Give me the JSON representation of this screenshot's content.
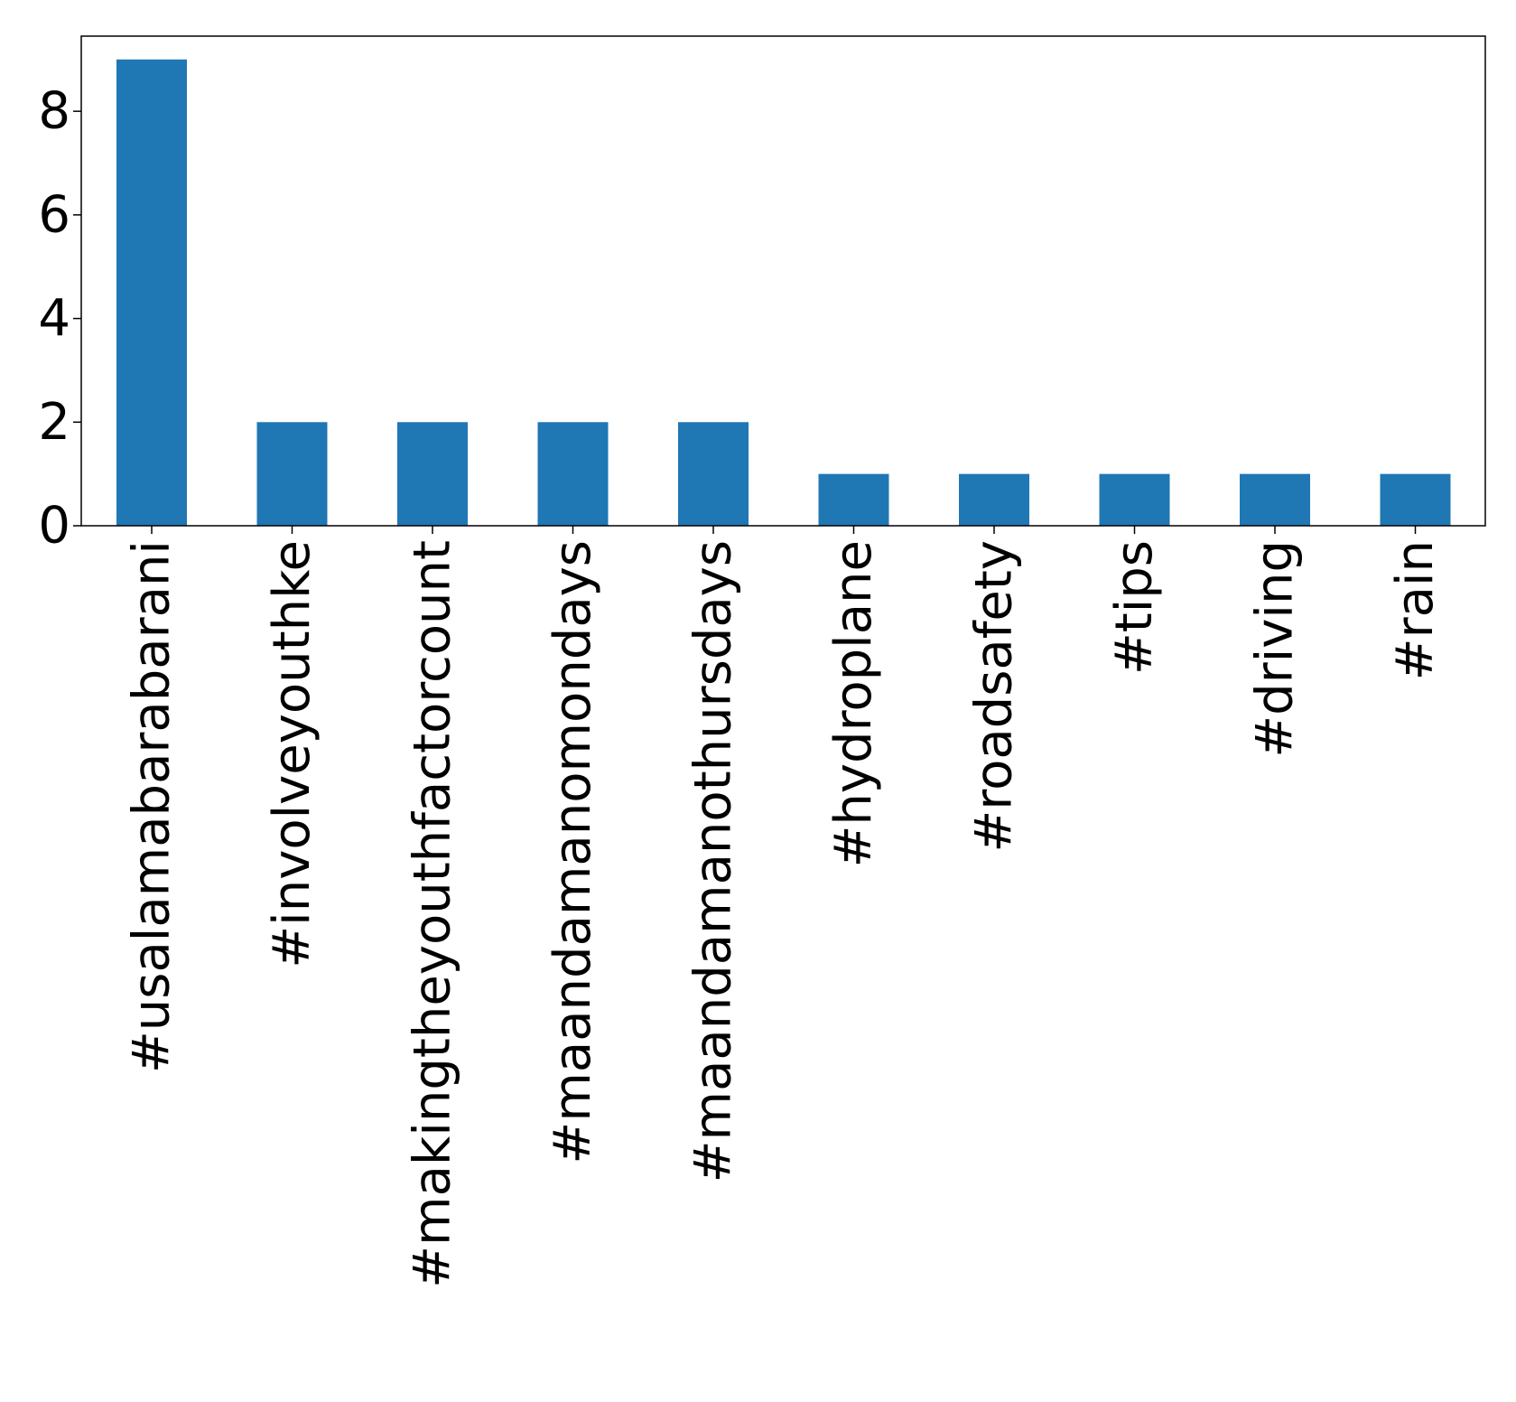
{
  "chart_data": {
    "type": "bar",
    "title": "",
    "xlabel": "",
    "ylabel": "",
    "categories": [
      "#usalamabarabarani",
      "#involveyouthke",
      "#makingtheyouthfactorcount",
      "#maandamanomondays",
      "#maandamanothursdays",
      "#hydroplane",
      "#roadsafety",
      "#tips",
      "#driving",
      "#rain"
    ],
    "values": [
      9,
      2,
      2,
      2,
      2,
      1,
      1,
      1,
      1,
      1
    ],
    "ylim": [
      0,
      9.45
    ],
    "yticks": [
      0,
      2,
      4,
      6,
      8
    ],
    "ytick_labels": [
      "0",
      "2",
      "4",
      "6",
      "8"
    ],
    "bar_color": "#1f77b4",
    "grid": false,
    "legend": "none"
  }
}
